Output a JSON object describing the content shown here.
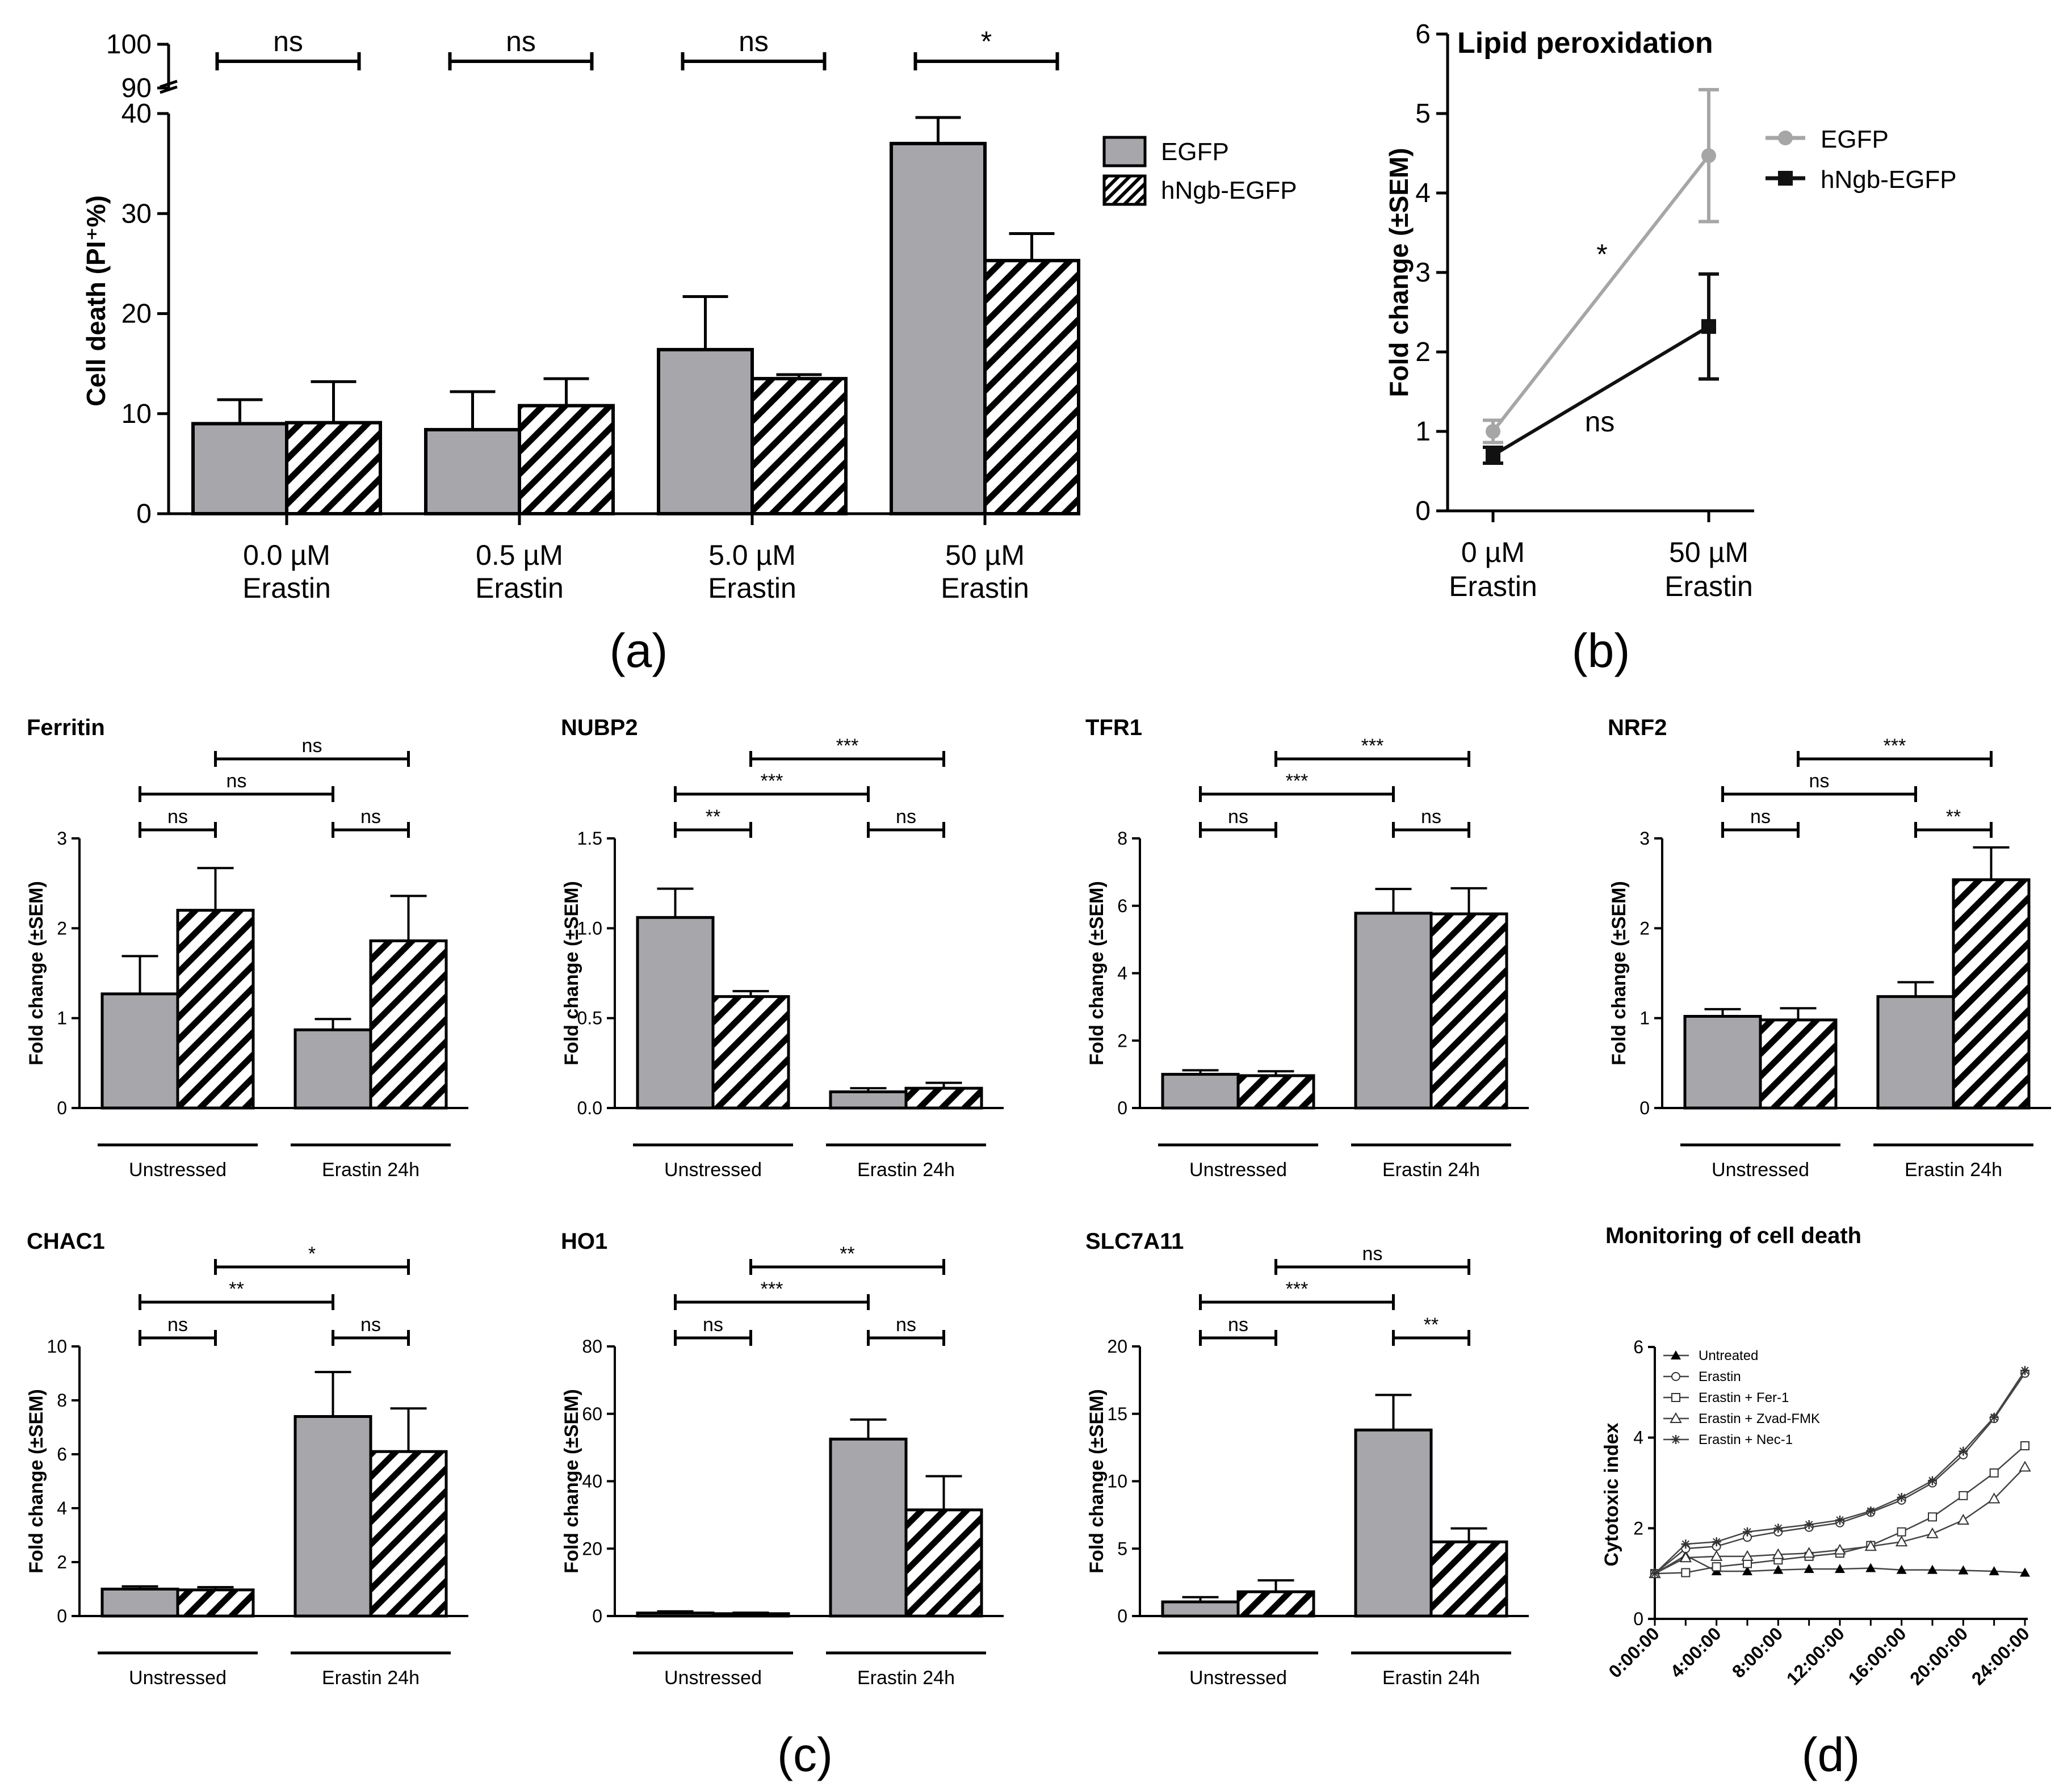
{
  "panel_labels": {
    "a": "(a)",
    "b": "(b)",
    "c": "(c)",
    "d": "(d)"
  },
  "chart_data": [
    {
      "id": "a",
      "type": "bar",
      "title": "",
      "ylabel": "Cell death (PI⁺%)",
      "xlabel": "",
      "categories": [
        {
          "line1": "0.0 µM",
          "line2": "Erastin"
        },
        {
          "line1": "0.5 µM",
          "line2": "Erastin"
        },
        {
          "line1": "5.0 µM",
          "line2": "Erastin"
        },
        {
          "line1": "50 µM",
          "line2": "Erastin"
        }
      ],
      "series": [
        {
          "name": "EGFP",
          "pattern": "solid",
          "values": [
            9.0,
            8.4,
            16.4,
            37.0
          ],
          "errors": [
            2.4,
            3.8,
            5.3,
            2.6
          ]
        },
        {
          "name": "hNgb-EGFP",
          "pattern": "hatch",
          "values": [
            9.1,
            10.8,
            13.5,
            25.3
          ],
          "errors": [
            4.1,
            2.7,
            0.4,
            2.7
          ]
        }
      ],
      "ylim": [
        0,
        40
      ],
      "yticks": [
        0,
        10,
        20,
        30,
        40
      ],
      "break_ticks": [
        "90",
        "100"
      ],
      "significance": [
        "ns",
        "ns",
        "ns",
        "*"
      ],
      "legend_position": "right"
    },
    {
      "id": "b",
      "type": "line",
      "title": "Lipid peroxidation",
      "ylabel": "Fold change (±SEM)",
      "categories": [
        {
          "line1": "0 µM",
          "line2": "Erastin"
        },
        {
          "line1": "50 µM",
          "line2": "Erastin"
        }
      ],
      "series": [
        {
          "name": "EGFP",
          "color": "#a6a6a6",
          "marker": "circle",
          "values": [
            1.0,
            4.47
          ],
          "errors": [
            0.14,
            0.83
          ]
        },
        {
          "name": "hNgb-EGFP",
          "color": "#111111",
          "marker": "square",
          "values": [
            0.7,
            2.32
          ],
          "errors": [
            0.1,
            0.66
          ]
        }
      ],
      "ylim": [
        0,
        6
      ],
      "yticks": [
        0,
        1,
        2,
        3,
        4,
        5,
        6
      ],
      "annotations": [
        "*",
        "ns"
      ],
      "legend_position": "right"
    },
    {
      "id": "ferritin",
      "type": "bar",
      "title": "Ferritin",
      "ylabel": "Fold change (±SEM)",
      "groups": [
        "Unstressed",
        "Erastin 24h"
      ],
      "ylim": [
        0,
        3
      ],
      "yticks": [
        "0",
        "1",
        "2",
        "3"
      ],
      "series": [
        {
          "name": "EGFP",
          "values": [
            1.27,
            0.87
          ],
          "errors": [
            0.42,
            0.12
          ]
        },
        {
          "name": "hNgb-EGFP",
          "values": [
            2.2,
            1.86
          ],
          "errors": [
            0.47,
            0.5
          ]
        }
      ],
      "brackets": [
        {
          "pair": "EGFP unstressed vs hNgb-EGFP unstressed",
          "label": "ns"
        },
        {
          "pair": "EGFP erastin vs hNgb-EGFP erastin",
          "label": "ns"
        },
        {
          "pair": "EGFP unstressed vs EGFP erastin",
          "label": "ns"
        },
        {
          "pair": "hNgb-EGFP unstressed vs hNgb-EGFP erastin",
          "label": "ns"
        }
      ]
    },
    {
      "id": "nubp2",
      "type": "bar",
      "title": "NUBP2",
      "ylabel": "Fold change (±SEM)",
      "groups": [
        "Unstressed",
        "Erastin 24h"
      ],
      "ylim": [
        0,
        1.5
      ],
      "yticks": [
        "0.0",
        "0.5",
        "1.0",
        "1.5"
      ],
      "series": [
        {
          "name": "EGFP",
          "values": [
            1.06,
            0.09
          ],
          "errors": [
            0.16,
            0.02
          ]
        },
        {
          "name": "hNgb-EGFP",
          "values": [
            0.62,
            0.11
          ],
          "errors": [
            0.03,
            0.03
          ]
        }
      ],
      "brackets": [
        {
          "pair": "EGFP unstressed vs hNgb-EGFP unstressed",
          "label": "**"
        },
        {
          "pair": "EGFP erastin vs hNgb-EGFP erastin",
          "label": "ns"
        },
        {
          "pair": "EGFP unstressed vs EGFP erastin",
          "label": "***"
        },
        {
          "pair": "hNgb-EGFP unstressed vs hNgb-EGFP erastin",
          "label": "***"
        }
      ]
    },
    {
      "id": "tfr1",
      "type": "bar",
      "title": "TFR1",
      "ylabel": "Fold change (±SEM)",
      "groups": [
        "Unstressed",
        "Erastin 24h"
      ],
      "ylim": [
        0,
        8
      ],
      "yticks": [
        "0",
        "2",
        "4",
        "6",
        "8"
      ],
      "series": [
        {
          "name": "EGFP",
          "values": [
            1.0,
            5.78
          ],
          "errors": [
            0.12,
            0.72
          ]
        },
        {
          "name": "hNgb-EGFP",
          "values": [
            0.96,
            5.76
          ],
          "errors": [
            0.13,
            0.76
          ]
        }
      ],
      "brackets": [
        {
          "pair": "EGFP unstressed vs hNgb-EGFP unstressed",
          "label": "ns"
        },
        {
          "pair": "EGFP erastin vs hNgb-EGFP erastin",
          "label": "ns"
        },
        {
          "pair": "EGFP unstressed vs EGFP erastin",
          "label": "***"
        },
        {
          "pair": "hNgb-EGFP unstressed vs hNgb-EGFP erastin",
          "label": "***"
        }
      ]
    },
    {
      "id": "nrf2",
      "type": "bar",
      "title": "NRF2",
      "ylabel": "Fold change (±SEM)",
      "groups": [
        "Unstressed",
        "Erastin 24h"
      ],
      "ylim": [
        0,
        3
      ],
      "yticks": [
        "0",
        "1",
        "2",
        "3"
      ],
      "series": [
        {
          "name": "EGFP",
          "values": [
            1.02,
            1.24
          ],
          "errors": [
            0.08,
            0.16
          ]
        },
        {
          "name": "hNgb-EGFP",
          "values": [
            0.98,
            2.54
          ],
          "errors": [
            0.13,
            0.36
          ]
        }
      ],
      "brackets": [
        {
          "pair": "EGFP unstressed vs hNgb-EGFP unstressed",
          "label": "ns"
        },
        {
          "pair": "EGFP erastin vs hNgb-EGFP erastin",
          "label": "**"
        },
        {
          "pair": "EGFP unstressed vs EGFP erastin",
          "label": "ns"
        },
        {
          "pair": "hNgb-EGFP unstressed vs hNgb-EGFP erastin",
          "label": "***"
        }
      ]
    },
    {
      "id": "chac1",
      "type": "bar",
      "title": "CHAC1",
      "ylabel": "Fold change (±SEM)",
      "groups": [
        "Unstressed",
        "Erastin 24h"
      ],
      "ylim": [
        0,
        10
      ],
      "yticks": [
        "0",
        "2",
        "4",
        "6",
        "8",
        "10"
      ],
      "series": [
        {
          "name": "EGFP",
          "values": [
            1.0,
            7.4
          ],
          "errors": [
            0.1,
            1.65
          ]
        },
        {
          "name": "hNgb-EGFP",
          "values": [
            0.97,
            6.1
          ],
          "errors": [
            0.1,
            1.6
          ]
        }
      ],
      "brackets": [
        {
          "pair": "EGFP unstressed vs hNgb-EGFP unstressed",
          "label": "ns"
        },
        {
          "pair": "EGFP erastin vs hNgb-EGFP erastin",
          "label": "ns"
        },
        {
          "pair": "EGFP unstressed vs EGFP erastin",
          "label": "**"
        },
        {
          "pair": "hNgb-EGFP unstressed vs hNgb-EGFP erastin",
          "label": "*"
        }
      ]
    },
    {
      "id": "ho1",
      "type": "bar",
      "title": "HO1",
      "ylabel": "Fold change (±SEM)",
      "groups": [
        "Unstressed",
        "Erastin 24h"
      ],
      "ylim": [
        0,
        80
      ],
      "yticks": [
        "0",
        "20",
        "40",
        "60",
        "80"
      ],
      "series": [
        {
          "name": "EGFP",
          "values": [
            0.9,
            52.5
          ],
          "errors": [
            0.5,
            5.8
          ]
        },
        {
          "name": "hNgb-EGFP",
          "values": [
            0.7,
            31.5
          ],
          "errors": [
            0.3,
            10.0
          ]
        }
      ],
      "brackets": [
        {
          "pair": "EGFP unstressed vs hNgb-EGFP unstressed",
          "label": "ns"
        },
        {
          "pair": "EGFP erastin vs hNgb-EGFP erastin",
          "label": "ns"
        },
        {
          "pair": "EGFP unstressed vs EGFP erastin",
          "label": "***"
        },
        {
          "pair": "hNgb-EGFP unstressed vs hNgb-EGFP erastin",
          "label": "**"
        }
      ]
    },
    {
      "id": "slc7a11",
      "type": "bar",
      "title": "SLC7A11",
      "ylabel": "Fold change (±SEM)",
      "groups": [
        "Unstressed",
        "Erastin 24h"
      ],
      "ylim": [
        0,
        20
      ],
      "yticks": [
        "0",
        "5",
        "10",
        "15",
        "20"
      ],
      "series": [
        {
          "name": "EGFP",
          "values": [
            1.05,
            13.8
          ],
          "errors": [
            0.35,
            2.6
          ]
        },
        {
          "name": "hNgb-EGFP",
          "values": [
            1.8,
            5.5
          ],
          "errors": [
            0.85,
            1.0
          ]
        }
      ],
      "brackets": [
        {
          "pair": "EGFP unstressed vs hNgb-EGFP unstressed",
          "label": "ns"
        },
        {
          "pair": "EGFP erastin vs hNgb-EGFP erastin",
          "label": "**"
        },
        {
          "pair": "EGFP unstressed vs EGFP erastin",
          "label": "***"
        },
        {
          "pair": "hNgb-EGFP unstressed vs hNgb-EGFP erastin",
          "label": "ns"
        }
      ]
    },
    {
      "id": "d",
      "type": "line",
      "title": "Monitoring of cell death",
      "ylabel": "Cytotoxic index",
      "ylim": [
        0,
        6
      ],
      "yticks": [
        "0",
        "2",
        "4",
        "6"
      ],
      "x_hours": [
        0,
        2,
        4,
        6,
        8,
        10,
        12,
        14,
        16,
        18,
        20,
        22,
        24
      ],
      "xticklabels": [
        "0:00:00",
        "4:00:00",
        "8:00:00",
        "12:00:00",
        "16:00:00",
        "20:00:00",
        "24:00:00"
      ],
      "series": [
        {
          "name": "Untreated",
          "marker": "triangle-filled",
          "values": [
            1.0,
            1.4,
            1.05,
            1.05,
            1.08,
            1.1,
            1.1,
            1.12,
            1.08,
            1.08,
            1.07,
            1.05,
            1.02
          ]
        },
        {
          "name": "Erastin",
          "marker": "circle-open",
          "values": [
            1.0,
            1.55,
            1.6,
            1.8,
            1.92,
            2.02,
            2.12,
            2.35,
            2.62,
            3.0,
            3.62,
            4.42,
            5.42
          ]
        },
        {
          "name": "Erastin + Fer-1",
          "marker": "square-open",
          "values": [
            1.0,
            1.02,
            1.15,
            1.22,
            1.3,
            1.38,
            1.45,
            1.62,
            1.92,
            2.25,
            2.72,
            3.22,
            3.82
          ]
        },
        {
          "name": "Erastin + Zvad-FMK",
          "marker": "triangle-open",
          "values": [
            1.0,
            1.35,
            1.38,
            1.38,
            1.42,
            1.45,
            1.52,
            1.6,
            1.7,
            1.88,
            2.18,
            2.65,
            3.35
          ]
        },
        {
          "name": "Erastin + Nec-1",
          "marker": "star",
          "values": [
            1.0,
            1.65,
            1.7,
            1.92,
            2.0,
            2.08,
            2.18,
            2.38,
            2.68,
            3.05,
            3.7,
            4.45,
            5.48
          ]
        }
      ],
      "legend_position": "top-left"
    }
  ]
}
